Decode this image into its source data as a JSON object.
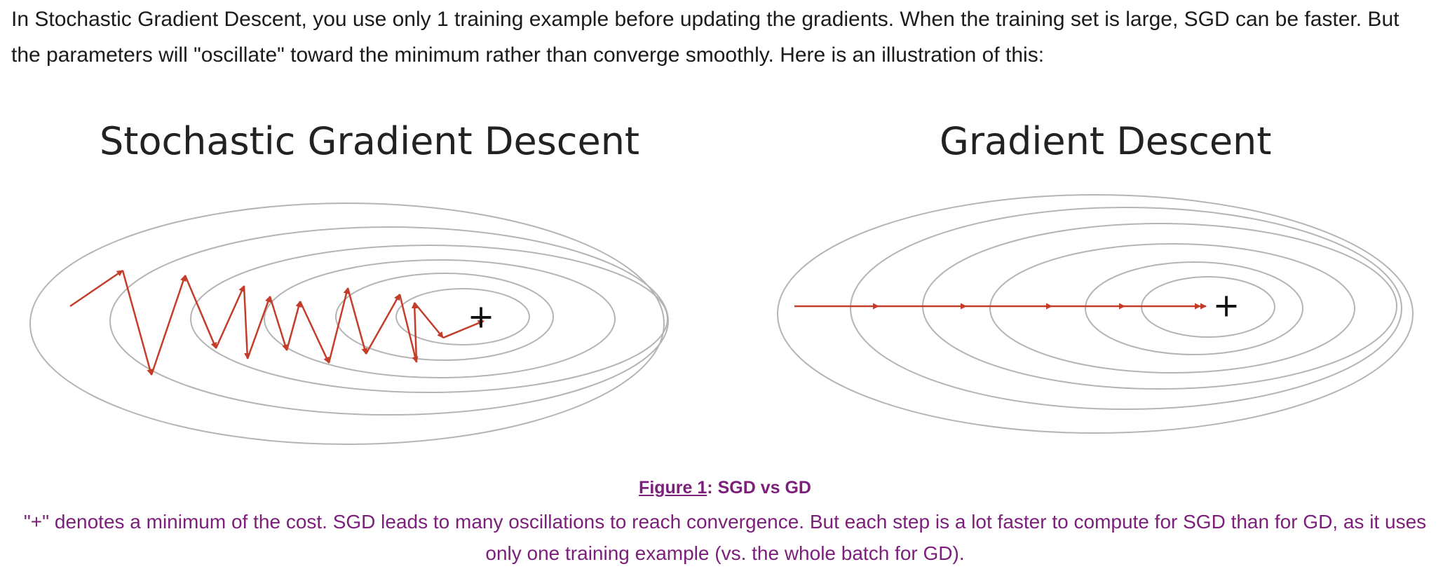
{
  "intro": {
    "text": "In Stochastic Gradient Descent, you use only 1 training example before updating the gradients. When the training set is large, SGD can be faster. But the parameters will \"oscillate\" toward the minimum rather than converge smoothly. Here is an illustration of this:"
  },
  "figure": {
    "left_title": "Stochastic Gradient Descent",
    "right_title": "Gradient Descent",
    "minimum_marker": "+"
  },
  "caption": {
    "figure_link": "Figure 1",
    "title_rest": ": SGD vs GD",
    "text": "\"+\" denotes a minimum of the cost. SGD leads to many oscillations to reach convergence. But each step is a lot faster to compute for SGD than for GD, as it uses only one training example (vs. the whole batch for GD)."
  },
  "colors": {
    "contour": "#b4b4b4",
    "path": "#c43c2a",
    "caption": "#7b1f7b"
  }
}
